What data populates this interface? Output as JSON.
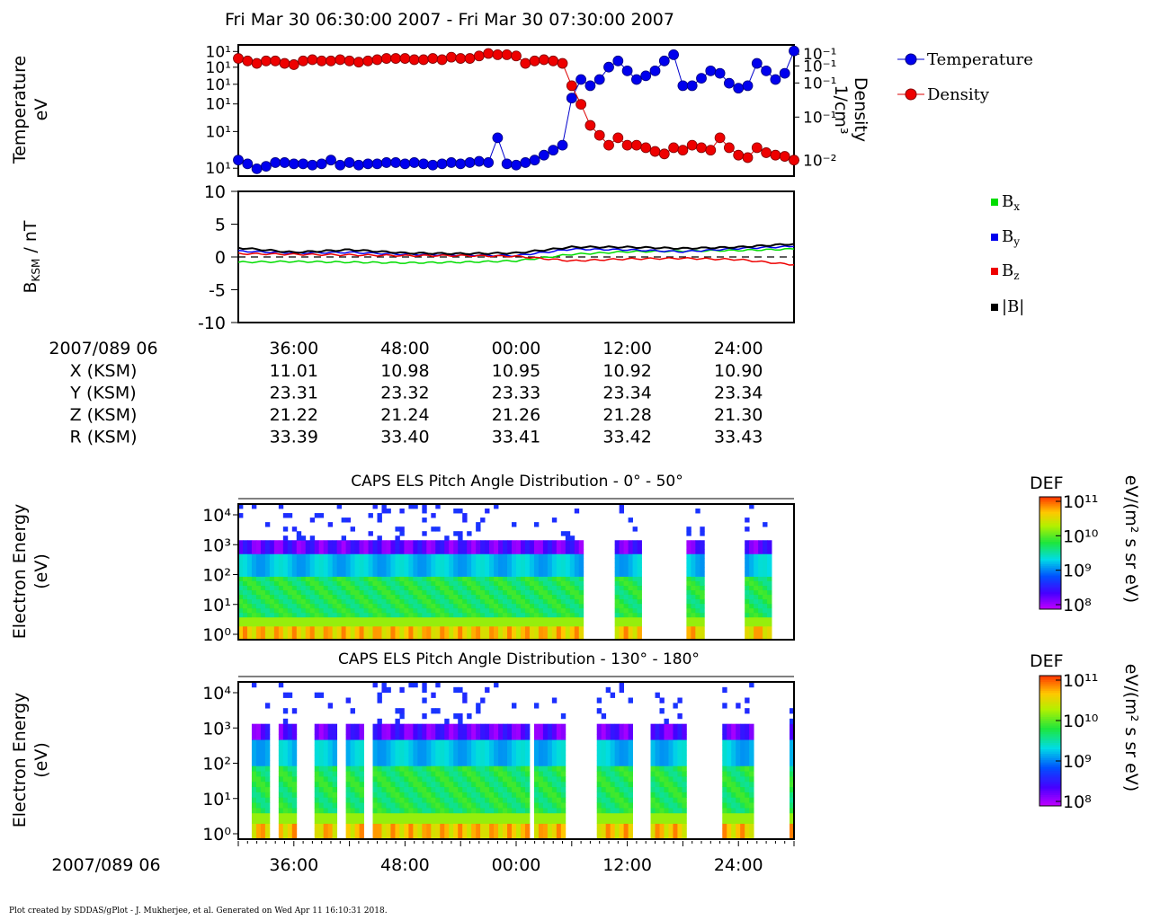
{
  "title": "Fri Mar 30 06:30:00 2007 - Fri Mar 30 07:30:00 2007",
  "footer": "Plot created by SDDAS/gPlot - J. Mukherjee, et al.  Generated on Wed Apr 11 16:10:31 2018.",
  "colors": {
    "temperature": "#0000cc",
    "density": "#dd0000",
    "bx": "#00dd00",
    "by": "#0000ee",
    "bz": "#ee0000",
    "btot": "#000000"
  },
  "chart_data": [
    {
      "type": "line",
      "panel": "temperature-density",
      "ylabel": [
        "Temperature",
        "eV"
      ],
      "ylabel_right": [
        "Density",
        "1/cm³"
      ],
      "y_ticks_left": [
        "10¹",
        "10¹",
        "10¹",
        "10¹",
        "10¹",
        "10¹"
      ],
      "y_ticks_right": [
        "10⁻¹",
        "10⁻¹",
        "10⁻¹",
        "10⁻¹",
        "10⁻²"
      ],
      "x_range_min": [
        0,
        60
      ],
      "series": [
        {
          "name": "Temperature",
          "x": [
            0,
            1,
            2,
            3,
            4,
            5,
            6,
            7,
            8,
            9,
            10,
            11,
            12,
            13,
            14,
            15,
            16,
            17,
            18,
            19,
            20,
            21,
            22,
            23,
            24,
            25,
            26,
            27,
            28,
            29,
            30,
            31,
            32,
            33,
            34,
            35,
            36,
            37,
            38,
            39,
            40,
            41,
            42,
            43,
            44,
            45,
            46,
            47,
            48,
            49,
            50,
            51,
            52,
            53,
            54,
            55,
            56,
            57,
            58,
            59,
            60
          ],
          "y": [
            0.9,
            0.93,
            0.97,
            0.95,
            0.92,
            0.92,
            0.93,
            0.93,
            0.94,
            0.93,
            0.9,
            0.94,
            0.92,
            0.94,
            0.93,
            0.93,
            0.92,
            0.92,
            0.93,
            0.92,
            0.93,
            0.94,
            0.93,
            0.92,
            0.93,
            0.92,
            0.91,
            0.92,
            0.72,
            0.93,
            0.94,
            0.92,
            0.9,
            0.86,
            0.82,
            0.78,
            0.4,
            0.25,
            0.3,
            0.25,
            0.15,
            0.1,
            0.18,
            0.25,
            0.22,
            0.18,
            0.1,
            0.05,
            0.3,
            0.3,
            0.24,
            0.18,
            0.2,
            0.28,
            0.32,
            0.3,
            0.12,
            0.18,
            0.25,
            0.2,
            0.02
          ]
        },
        {
          "name": "Density",
          "x": [
            0,
            1,
            2,
            3,
            4,
            5,
            6,
            7,
            8,
            9,
            10,
            11,
            12,
            13,
            14,
            15,
            16,
            17,
            18,
            19,
            20,
            21,
            22,
            23,
            24,
            25,
            26,
            27,
            28,
            29,
            30,
            31,
            32,
            33,
            34,
            35,
            36,
            37,
            38,
            39,
            40,
            41,
            42,
            43,
            44,
            45,
            46,
            47,
            48,
            49,
            50,
            51,
            52,
            53,
            54,
            55,
            56,
            57,
            58,
            59,
            60
          ],
          "y": [
            0.08,
            0.1,
            0.12,
            0.1,
            0.1,
            0.12,
            0.13,
            0.1,
            0.09,
            0.1,
            0.1,
            0.09,
            0.1,
            0.11,
            0.1,
            0.09,
            0.08,
            0.08,
            0.08,
            0.09,
            0.09,
            0.08,
            0.09,
            0.07,
            0.08,
            0.08,
            0.06,
            0.04,
            0.05,
            0.05,
            0.06,
            0.12,
            0.1,
            0.09,
            0.1,
            0.12,
            0.3,
            0.45,
            0.62,
            0.7,
            0.78,
            0.72,
            0.78,
            0.78,
            0.8,
            0.83,
            0.85,
            0.8,
            0.82,
            0.78,
            0.8,
            0.82,
            0.72,
            0.8,
            0.86,
            0.88,
            0.8,
            0.84,
            0.86,
            0.87,
            0.9
          ]
        }
      ]
    },
    {
      "type": "line",
      "panel": "magnetic-field",
      "ylabel": "B",
      "ylabel_sub": "KSM",
      "ylabel_unit": " / nT",
      "ylim": [
        -10,
        10
      ],
      "y_ticks": [
        "10",
        "5",
        "0",
        "-5",
        "-10"
      ],
      "y_tick_values": [
        10,
        5,
        0,
        -5,
        -10
      ],
      "x_range_min": [
        0,
        60
      ],
      "series": [
        {
          "name": "Bx",
          "sub": "x",
          "x": [
            0,
            6,
            12,
            18,
            24,
            30,
            36,
            42,
            48,
            54,
            60
          ],
          "y": [
            -0.8,
            -0.7,
            -0.8,
            -0.9,
            -0.8,
            -0.6,
            0.4,
            0.8,
            0.9,
            1.0,
            1.2
          ]
        },
        {
          "name": "By",
          "sub": "y",
          "x": [
            0,
            6,
            12,
            18,
            24,
            30,
            36,
            42,
            48,
            54,
            60
          ],
          "y": [
            0.9,
            0.6,
            0.7,
            0.4,
            0.3,
            0.2,
            1.2,
            1.1,
            0.8,
            1.3,
            1.6
          ]
        },
        {
          "name": "Bz",
          "sub": "z",
          "x": [
            0,
            6,
            12,
            18,
            24,
            30,
            36,
            42,
            48,
            54,
            60
          ],
          "y": [
            0.5,
            0.4,
            0.3,
            0.2,
            0.2,
            0.1,
            -0.6,
            -0.3,
            -0.2,
            -0.4,
            -1.2
          ]
        },
        {
          "name": "|B|",
          "x": [
            0,
            6,
            12,
            18,
            24,
            30,
            36,
            42,
            48,
            54,
            60
          ],
          "y": [
            1.4,
            0.7,
            1.1,
            0.6,
            0.5,
            0.6,
            1.5,
            1.5,
            1.3,
            1.5,
            2.0
          ]
        }
      ]
    },
    {
      "type": "heatmap",
      "panel": "caps-els-0-50",
      "title": "CAPS ELS Pitch Angle Distribution - 0° - 50°",
      "ylabel": [
        "Electron Energy",
        "(eV)"
      ],
      "y_ticks": [
        "10⁴",
        "10³",
        "10²",
        "10¹",
        "10⁰"
      ],
      "colorbar": {
        "label": "DEF",
        "unit": "eV/(m² s sr eV)",
        "ticks": [
          "10¹¹",
          "10¹⁰",
          "10⁹",
          "10⁸"
        ]
      },
      "gaps_min": [
        [
          37.5,
          40.5
        ],
        [
          43.5,
          48.5
        ],
        [
          50.5,
          54.5
        ],
        [
          57.5,
          60
        ]
      ]
    },
    {
      "type": "heatmap",
      "panel": "caps-els-130-180",
      "title": "CAPS ELS Pitch Angle Distribution - 130° - 180°",
      "ylabel": [
        "Electron Energy",
        "(eV)"
      ],
      "y_ticks": [
        "10⁴",
        "10³",
        "10²",
        "10¹",
        "10⁰"
      ],
      "colorbar": {
        "label": "DEF",
        "unit": "eV/(m² s sr eV)",
        "ticks": [
          "10¹¹",
          "10¹⁰",
          "10⁹",
          "10⁸"
        ]
      },
      "gaps_min": [
        [
          0,
          1.5
        ],
        [
          3.5,
          4.5
        ],
        [
          6.5,
          8.0
        ],
        [
          10.5,
          11.5
        ],
        [
          13.5,
          14.5
        ],
        [
          31.5,
          32.0
        ],
        [
          35.5,
          38.5
        ],
        [
          42.5,
          44.5
        ],
        [
          48.5,
          52.5
        ],
        [
          55.5,
          59.5
        ]
      ]
    }
  ],
  "time_axis": {
    "row_label": "2007/089 06",
    "ticks": [
      "36:00",
      "48:00",
      "00:00",
      "12:00",
      "24:00"
    ],
    "tick_minutes": [
      6,
      18,
      30,
      42,
      54
    ]
  },
  "ephemeris": [
    {
      "label": "X (KSM)",
      "values": [
        "11.01",
        "10.98",
        "10.95",
        "10.92",
        "10.90"
      ]
    },
    {
      "label": "Y (KSM)",
      "values": [
        "23.31",
        "23.32",
        "23.33",
        "23.34",
        "23.34"
      ]
    },
    {
      "label": "Z (KSM)",
      "values": [
        "21.22",
        "21.24",
        "21.26",
        "21.28",
        "21.30"
      ]
    },
    {
      "label": "R (KSM)",
      "values": [
        "33.39",
        "33.40",
        "33.41",
        "33.42",
        "33.43"
      ]
    }
  ]
}
